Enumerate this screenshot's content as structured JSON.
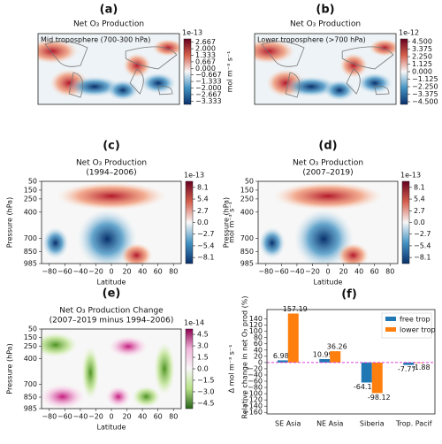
{
  "chart_data": [
    {
      "type": "map",
      "label": "(a)",
      "title": "Net O₃ Production",
      "annotation": "Mid troposphere (700-300 hPa)",
      "colorbar_label": "mol m⁻³ s⁻¹",
      "colorbar_exponent": "1e-13",
      "colormap": "RdBu_r",
      "clim": [
        -3.667,
        3.0
      ],
      "colorbar_ticks": [
        2.667,
        {
          "value": 2,
          "label": "2.000"
        },
        1.333,
        0.667,
        {
          "value": 0,
          "label": "0.000"
        },
        {
          "value": -0.667,
          "label": "−0.667"
        },
        {
          "value": -1.333,
          "label": "−1.333"
        },
        {
          "value": -2,
          "label": "−2.000"
        },
        {
          "value": -2.667,
          "label": "−2.667"
        },
        {
          "value": -3.333,
          "label": "−3.333"
        }
      ]
    },
    {
      "type": "map",
      "label": "(b)",
      "title": "Net O₃ Production",
      "annotation": "Lower troposphere (>700 hPa)",
      "colorbar_label": "mol m⁻³ s⁻¹",
      "colorbar_exponent": "1e-12",
      "colormap": "RdBu_r",
      "clim": [
        -4.9,
        4.9
      ],
      "colorbar_ticks": [
        {
          "value": 4.5,
          "label": "4.500"
        },
        3.375,
        {
          "value": 2.25,
          "label": "2.250"
        },
        1.125,
        {
          "value": 0,
          "label": "0.000"
        },
        {
          "value": -1.125,
          "label": "−1.125"
        },
        {
          "value": -2.25,
          "label": "−2.250"
        },
        {
          "value": -3.375,
          "label": "−3.375"
        },
        {
          "value": -4.5,
          "label": "−4.500"
        }
      ]
    },
    {
      "type": "contour",
      "label": "(c)",
      "title": [
        "Net O₃ Production",
        "(1994–2006)"
      ],
      "xlabel": "Latitude",
      "ylabel": "Pressure (hPa)",
      "xlim": [
        -90,
        90
      ],
      "xticks": [
        {
          "value": -80,
          "label": "−80"
        },
        {
          "value": -60,
          "label": "−60"
        },
        {
          "value": -40,
          "label": "−40"
        },
        {
          "value": -20,
          "label": "−20"
        },
        0,
        20,
        40,
        60,
        80
      ],
      "ylim": [
        50,
        985
      ],
      "y_inverted": true,
      "yticks": [
        50,
        150,
        250,
        400,
        700,
        850,
        985
      ],
      "colorbar_label": "mol m⁻³ s⁻¹",
      "colorbar_exponent": "1e-13",
      "colormap": "RdBu_r",
      "clim": [
        -9.5,
        9.5
      ],
      "colorbar_ticks": [
        8.1,
        5.4,
        2.7,
        {
          "value": 0,
          "label": "0.0"
        },
        {
          "value": -2.7,
          "label": "−2.7"
        },
        {
          "value": -5.4,
          "label": "−5.4"
        },
        {
          "value": -8.1,
          "label": "−8.1"
        }
      ]
    },
    {
      "type": "contour",
      "label": "(d)",
      "title": [
        "Net O₃ Production",
        "(2007–2019)"
      ],
      "xlabel": "Latitude",
      "ylabel": "Pressure (hPa)",
      "xlim": [
        -90,
        90
      ],
      "xticks": [
        {
          "value": -80,
          "label": "−80"
        },
        {
          "value": -60,
          "label": "−60"
        },
        {
          "value": -40,
          "label": "−40"
        },
        {
          "value": -20,
          "label": "−20"
        },
        0,
        20,
        40,
        60,
        80
      ],
      "ylim": [
        50,
        985
      ],
      "y_inverted": true,
      "yticks": [
        50,
        150,
        250,
        400,
        700,
        850,
        985
      ],
      "colorbar_label": "mol m⁻³ s⁻¹",
      "colorbar_exponent": "1e-13",
      "colormap": "RdBu_r",
      "clim": [
        -9.5,
        9.5
      ],
      "colorbar_ticks": [
        8.1,
        5.4,
        2.7,
        {
          "value": 0,
          "label": "0.0"
        },
        {
          "value": -2.7,
          "label": "−2.7"
        },
        {
          "value": -5.4,
          "label": "−5.4"
        },
        {
          "value": -8.1,
          "label": "−8.1"
        }
      ]
    },
    {
      "type": "contour",
      "label": "(e)",
      "title": [
        "Net O₃ Production Change",
        "(2007–2019 minus 1994–2006)"
      ],
      "xlabel": "Latitude",
      "ylabel": "Pressure (hPa)",
      "xlim": [
        -90,
        90
      ],
      "xticks": [
        {
          "value": -80,
          "label": "−80"
        },
        {
          "value": -60,
          "label": "−60"
        },
        {
          "value": -40,
          "label": "−40"
        },
        {
          "value": -20,
          "label": "−20"
        },
        0,
        20,
        40,
        60,
        80
      ],
      "ylim": [
        50,
        985
      ],
      "y_inverted": true,
      "yticks": [
        50,
        150,
        250,
        400,
        700,
        850,
        985
      ],
      "colorbar_label": "Δ mol m⁻³ s⁻¹",
      "colorbar_exponent": "1e-14",
      "colormap": "PiYG",
      "clim": [
        -5.2,
        5.2
      ],
      "colorbar_ticks": [
        4.5,
        {
          "value": 3,
          "label": "3.0"
        },
        1.5,
        {
          "value": 0,
          "label": "0.0"
        },
        {
          "value": -1.5,
          "label": "−1.5"
        },
        {
          "value": -3,
          "label": "−3.0"
        },
        {
          "value": -4.5,
          "label": "−4.5"
        }
      ]
    },
    {
      "type": "bar",
      "label": "(f)",
      "ylabel": "Relative change in net O₃ prod (%)",
      "categories": [
        "SE Asia",
        "NE Asia",
        "Siberia",
        "Trop. Pacif"
      ],
      "series": [
        {
          "name": "free trop",
          "color": "#1f77b4",
          "values": [
            6.98,
            10.99,
            -64.14,
            -7.77
          ]
        },
        {
          "name": "lower trop",
          "color": "#ff7f0e",
          "values": [
            157.19,
            36.26,
            -98.12,
            -1.88
          ]
        }
      ],
      "ylim": [
        -165,
        170
      ],
      "legend": "upper right",
      "yticks": [
        140,
        120,
        100,
        80,
        60,
        40,
        20,
        0,
        {
          "value": -20,
          "label": "−20"
        },
        {
          "value": -40,
          "label": "−40"
        },
        {
          "value": -60,
          "label": "−60"
        },
        {
          "value": -80,
          "label": "−80"
        },
        {
          "value": -100,
          "label": "−100"
        },
        {
          "value": -120,
          "label": "−120"
        },
        {
          "value": -140,
          "label": "−140"
        },
        {
          "value": -160,
          "label": "−160"
        }
      ]
    }
  ]
}
